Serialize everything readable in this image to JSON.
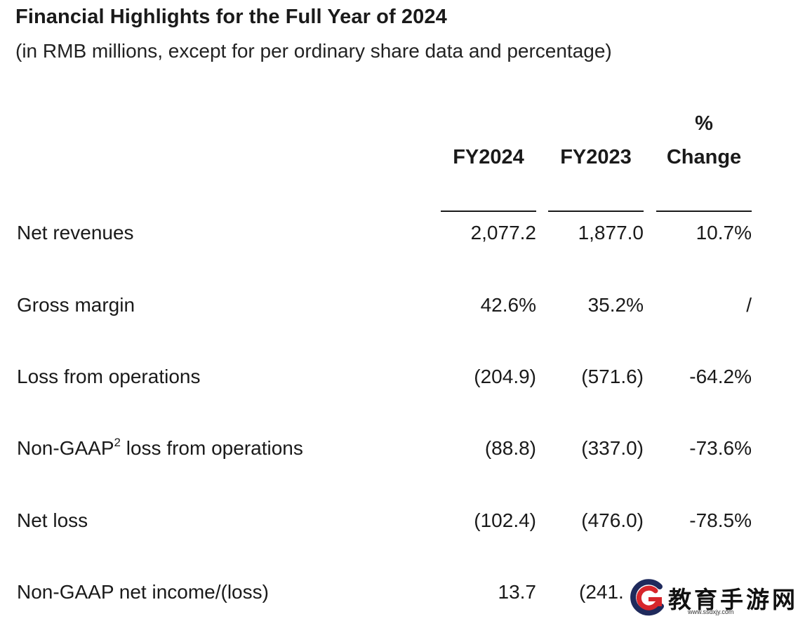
{
  "title": "Financial Highlights for the Full Year of 2024",
  "subtitle": "(in RMB millions, except for per ordinary share data and percentage)",
  "columns": {
    "fy2024": "FY2024",
    "fy2023": "FY2023",
    "change_top": "%",
    "change_bottom": "Change"
  },
  "rows": [
    {
      "label": "Net revenues",
      "fy2024": "2,077.2",
      "fy2023": "1,877.0",
      "change": "10.7%"
    },
    {
      "label": "Gross margin",
      "fy2024": "42.6%",
      "fy2023": "35.2%",
      "change": "/"
    },
    {
      "label": "Loss from operations",
      "fy2024": "(204.9)",
      "fy2023": "(571.6)",
      "change": "-64.2%"
    },
    {
      "label_pre": "Non-GAAP",
      "label_sup": "2",
      "label_post": " loss from operations",
      "fy2024": "(88.8)",
      "fy2023": "(337.0)",
      "change": "-73.6%"
    },
    {
      "label": "Net loss",
      "fy2024": "(102.4)",
      "fy2023": "(476.0)",
      "change": "-78.5%"
    },
    {
      "label": "Non-GAAP net income/(loss)",
      "fy2024": "13.7",
      "fy2023": "(241.",
      "change": ""
    }
  ],
  "watermark": {
    "text": "教育手游网",
    "url": "www.ssdxjy.com",
    "logo_icon": "g-logo-icon",
    "colors": {
      "logo_red": "#d7262b",
      "logo_navy": "#1f2a5c"
    }
  }
}
